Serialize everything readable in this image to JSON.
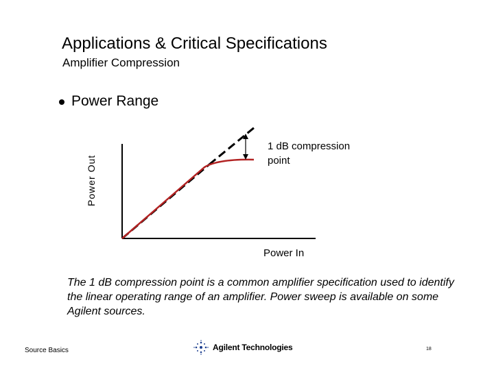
{
  "slide": {
    "title": "Applications & Critical Specifications",
    "subtitle": "Amplifier Compression",
    "bullet": "Power Range",
    "caption": "The 1 dB compression point is a common amplifier specification used to identify the linear operating range of an amplifier.  Power sweep is available on some Agilent sources."
  },
  "diagram": {
    "y_axis_label": "Power Out",
    "x_axis_label": "Power In",
    "annotation_line1": "1 dB compression",
    "annotation_line2": "point",
    "curve_color": "#b22222",
    "ideal_line_style": "dashed",
    "compression_db": 1
  },
  "footer": {
    "source": "Source Basics",
    "company": "Agilent Technologies",
    "logo_icon": "agilent-spark-icon",
    "page_number": "18"
  }
}
